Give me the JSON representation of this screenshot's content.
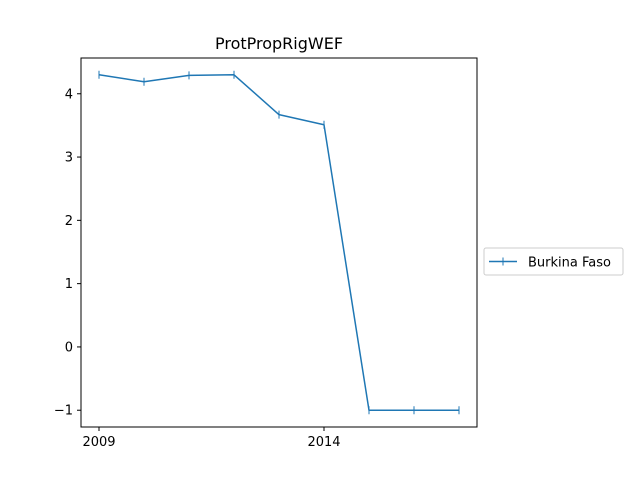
{
  "chart_data": {
    "type": "line",
    "title": "ProtPropRigWEF",
    "xlabel": "",
    "ylabel": "",
    "x": [
      2009,
      2010,
      2011,
      2012,
      2013,
      2014,
      2015,
      2016,
      2017
    ],
    "series": [
      {
        "name": "Burkina Faso",
        "values": [
          4.3,
          4.19,
          4.29,
          4.3,
          3.67,
          3.51,
          -1.0,
          -1.0,
          -1.0
        ],
        "color": "#1f77b4",
        "marker": "vertical-tick"
      }
    ],
    "xlim": [
      2008.6,
      2017.4
    ],
    "ylim": [
      -1.265,
      4.565
    ],
    "x_ticks": [
      2009,
      2014
    ],
    "x_tick_labels": [
      "2009",
      "2014"
    ],
    "y_ticks": [
      -1,
      0,
      1,
      2,
      3,
      4
    ],
    "y_tick_labels": [
      "−1",
      "0",
      "1",
      "2",
      "3",
      "4"
    ],
    "grid": false,
    "legend_position": "center-right, outside plot"
  }
}
